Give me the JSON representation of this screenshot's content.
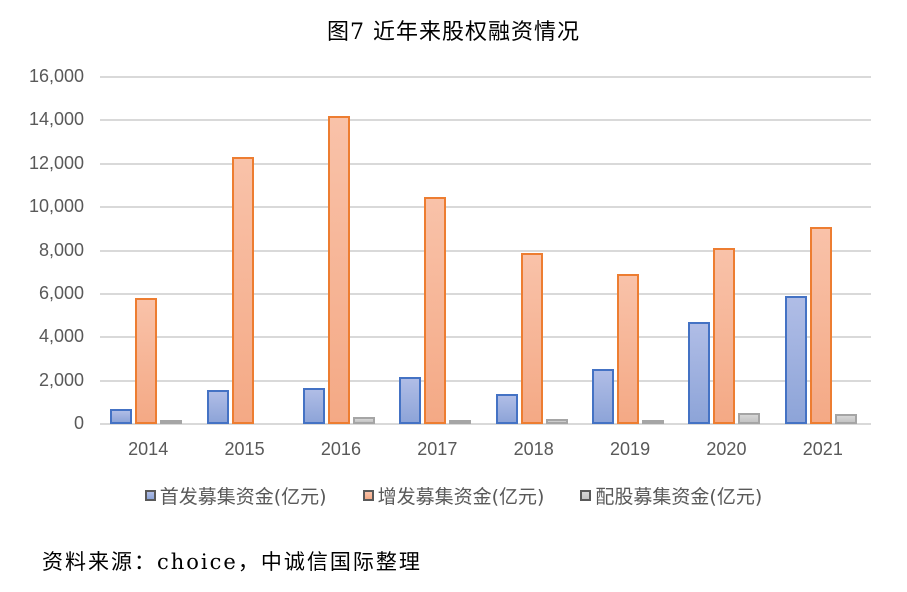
{
  "title": "图7 近年来股权融资情况",
  "source": "资料来源：choice，中诚信国际整理",
  "chart_data": {
    "type": "bar",
    "title": "图7 近年来股权融资情况",
    "xlabel": "",
    "ylabel": "",
    "ylim": [
      0,
      16000
    ],
    "yticks": [
      "0",
      "2,000",
      "4,000",
      "6,000",
      "8,000",
      "10,000",
      "12,000",
      "14,000",
      "16,000"
    ],
    "grid": true,
    "legend_position": "bottom",
    "categories": [
      "2014",
      "2015",
      "2016",
      "2017",
      "2018",
      "2019",
      "2020",
      "2021"
    ],
    "series": [
      {
        "name": "首发募集资金(亿元)",
        "color": "#4472c4",
        "values": [
          690,
          1570,
          1650,
          2180,
          1380,
          2540,
          4700,
          5900
        ]
      },
      {
        "name": "增发募集资金(亿元)",
        "color": "#ed7d31",
        "values": [
          5800,
          12300,
          14200,
          10450,
          7900,
          6900,
          8100,
          9100
        ]
      },
      {
        "name": "配股募集资金(亿元)",
        "color": "#a5a5a5",
        "values": [
          120,
          0,
          300,
          160,
          250,
          150,
          500,
          460
        ]
      }
    ]
  }
}
